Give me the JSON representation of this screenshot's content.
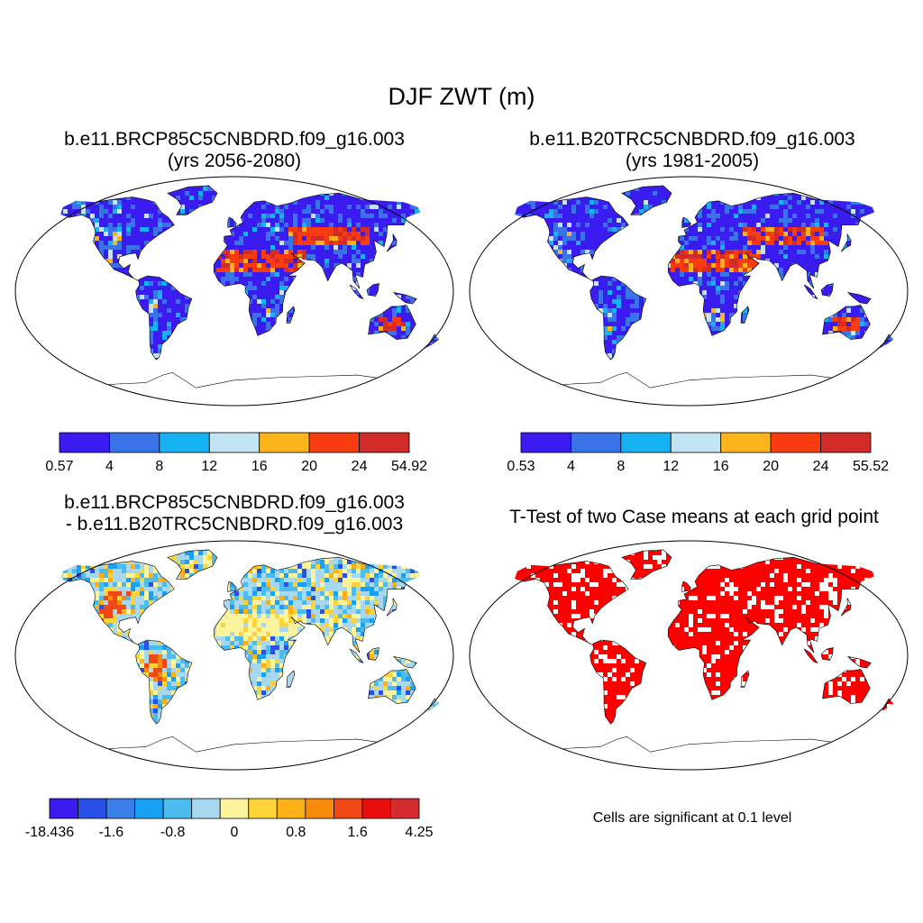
{
  "figure": {
    "title": "DJF ZWT (m)",
    "footnote": "Cells are significant at 0.1 level"
  },
  "palettes": {
    "abs": [
      "#3a1cf0",
      "#3a72e8",
      "#17b2f2",
      "#c4e4f6",
      "#fcb41c",
      "#f83c10",
      "#d22c28"
    ],
    "diff": [
      "#3a1cf0",
      "#2a50ea",
      "#3a7ee8",
      "#18a0f4",
      "#4cbcee",
      "#a8d8f0",
      "#fcf49c",
      "#fcd43a",
      "#fcb018",
      "#f88a0c",
      "#f04814",
      "#e80c0c",
      "#d42c2e"
    ],
    "sig": "#ff0000",
    "land_outline": "#000000"
  },
  "panels": [
    {
      "id": "future",
      "title_line1": "b.e11.BRCP85C5CNBDRD.f09_g16.003",
      "title_line2": "(yrs 2056-2080)",
      "field": "abs",
      "colorbar": {
        "palette": "abs",
        "labels": [
          "0.57",
          "4",
          "8",
          "12",
          "16",
          "20",
          "24",
          "54.92"
        ]
      }
    },
    {
      "id": "historical",
      "title_line1": "b.e11.B20TRC5CNBDRD.f09_g16.003",
      "title_line2": "(yrs 1981-2005)",
      "field": "abs",
      "colorbar": {
        "palette": "abs",
        "labels": [
          "0.53",
          "4",
          "8",
          "12",
          "16",
          "20",
          "24",
          "55.52"
        ]
      }
    },
    {
      "id": "difference",
      "title_line1": "b.e11.BRCP85C5CNBDRD.f09_g16.003",
      "title_line2": "- b.e11.B20TRC5CNBDRD.f09_g16.003",
      "field": "diff",
      "colorbar": {
        "palette": "diff",
        "labels": [
          "-18.436",
          "-1.6",
          "-0.8",
          "0",
          "0.8",
          "1.6",
          "4.25"
        ]
      }
    },
    {
      "id": "ttest",
      "title_line1": "T-Test of two Case means at each grid point",
      "title_line2": "",
      "field": "sig"
    }
  ]
}
